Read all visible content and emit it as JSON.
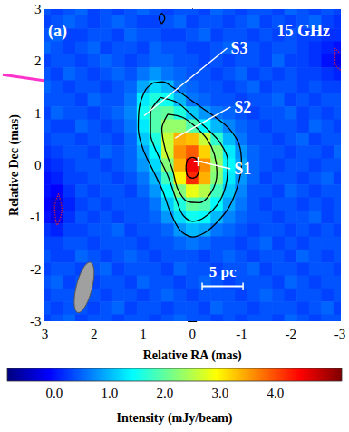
{
  "chart_data": {
    "type": "heatmap",
    "title": "15 GHz",
    "panel_label": "(a)",
    "x_label": "Relative RA (mas)",
    "y_label": "Relative Dec (mas)",
    "xlim": [
      3,
      -3
    ],
    "ylim": [
      -3,
      3
    ],
    "xticks": [
      3,
      2,
      1,
      0,
      -1,
      -2,
      -3
    ],
    "yticks": [
      -3,
      -2,
      -1,
      0,
      1,
      2,
      3
    ],
    "x": [
      3,
      2.75,
      2.5,
      2.25,
      2,
      1.75,
      1.5,
      1.25,
      1,
      0.75,
      0.5,
      0.25,
      0,
      -0.25,
      -0.5,
      -0.75,
      -1,
      -1.25,
      -1.5,
      -1.75,
      -2,
      -2.25,
      -2.5,
      -2.75,
      -3
    ],
    "y": [
      3,
      2.75,
      2.5,
      2.25,
      2,
      1.75,
      1.5,
      1.25,
      1,
      0.75,
      0.5,
      0.25,
      0,
      -0.25,
      -0.5,
      -0.75,
      -1,
      -1.25,
      -1.5,
      -1.75,
      -2,
      -2.25,
      -2.5,
      -2.75,
      -3
    ],
    "z": [
      [
        0.4,
        0.3,
        0.4,
        0.5,
        0.3,
        0.4,
        0.3,
        0.4,
        0.5,
        0.4,
        0.3,
        0.4,
        0.4,
        0.3,
        0.5,
        0.4,
        0.3,
        0.4,
        0.4,
        0.3,
        0.5,
        0.4,
        0.3,
        0.4,
        0.3
      ],
      [
        0.3,
        0.4,
        0.5,
        0.4,
        0.3,
        0.4,
        0.5,
        0.4,
        0.3,
        0.3,
        0.4,
        0.5,
        0.3,
        0.4,
        0.4,
        0.3,
        0.4,
        0.5,
        0.3,
        0.4,
        0.3,
        0.4,
        0.5,
        0.3,
        0.2
      ],
      [
        0.4,
        0.5,
        0.3,
        0.3,
        0.4,
        0.4,
        0.3,
        0.5,
        0.4,
        0.4,
        0.3,
        0.3,
        0.4,
        0.5,
        0.3,
        0.4,
        0.4,
        0.3,
        0.4,
        0.3,
        0.4,
        0.3,
        0.3,
        0.2,
        0.2
      ],
      [
        0.5,
        0.4,
        0.3,
        0.4,
        0.5,
        0.3,
        0.4,
        0.4,
        0.3,
        0.5,
        0.4,
        0.4,
        0.3,
        0.3,
        0.4,
        0.5,
        0.3,
        0.4,
        0.3,
        0.4,
        0.4,
        0.3,
        0.2,
        0.1,
        0.0
      ],
      [
        0.3,
        0.4,
        0.4,
        0.3,
        0.4,
        0.5,
        0.4,
        0.3,
        0.4,
        0.5,
        0.5,
        0.4,
        0.4,
        0.3,
        0.4,
        0.3,
        0.4,
        0.4,
        0.3,
        0.5,
        0.3,
        0.3,
        0.2,
        0.0,
        -0.2
      ],
      [
        0.4,
        0.3,
        0.5,
        0.4,
        0.3,
        0.4,
        0.5,
        0.4,
        0.6,
        0.8,
        0.6,
        0.5,
        0.4,
        0.4,
        0.3,
        0.4,
        0.5,
        0.3,
        0.4,
        0.3,
        0.4,
        0.3,
        0.3,
        0.2,
        0.1
      ],
      [
        0.5,
        0.4,
        0.3,
        0.4,
        0.4,
        0.3,
        0.4,
        0.5,
        0.9,
        1.2,
        1.0,
        0.6,
        0.5,
        0.4,
        0.4,
        0.3,
        0.4,
        0.5,
        0.3,
        0.4,
        0.4,
        0.3,
        0.4,
        0.3,
        0.3
      ],
      [
        0.4,
        0.4,
        0.4,
        0.3,
        0.5,
        0.4,
        0.4,
        0.6,
        1.3,
        1.6,
        1.5,
        1.0,
        0.6,
        0.5,
        0.4,
        0.4,
        0.3,
        0.4,
        0.4,
        0.5,
        0.3,
        0.4,
        0.3,
        0.4,
        0.4
      ],
      [
        0.3,
        0.5,
        0.4,
        0.4,
        0.3,
        0.4,
        0.5,
        0.7,
        1.5,
        1.9,
        2.0,
        1.6,
        1.1,
        0.8,
        0.6,
        0.5,
        0.4,
        0.3,
        0.4,
        0.4,
        0.5,
        0.3,
        0.4,
        0.3,
        0.4
      ],
      [
        0.4,
        0.3,
        0.3,
        0.5,
        0.4,
        0.3,
        0.4,
        0.6,
        1.3,
        1.9,
        2.3,
        2.3,
        1.9,
        1.4,
        1.0,
        0.7,
        0.5,
        0.4,
        0.3,
        0.4,
        0.4,
        0.3,
        0.5,
        0.4,
        0.3
      ],
      [
        0.3,
        0.4,
        0.4,
        0.3,
        0.4,
        0.4,
        0.3,
        0.5,
        1.1,
        1.6,
        2.6,
        3.4,
        3.3,
        2.6,
        1.7,
        1.0,
        0.6,
        0.4,
        0.4,
        0.3,
        0.4,
        0.5,
        0.3,
        0.4,
        0.4
      ],
      [
        0.2,
        0.3,
        0.4,
        0.4,
        0.3,
        0.5,
        0.4,
        0.5,
        0.9,
        1.4,
        2.6,
        3.6,
        3.9,
        3.2,
        2.2,
        1.3,
        0.8,
        0.5,
        0.4,
        0.4,
        0.3,
        0.4,
        0.4,
        0.3,
        0.5
      ],
      [
        0.1,
        0.2,
        0.3,
        0.4,
        0.4,
        0.3,
        0.4,
        0.5,
        0.8,
        1.2,
        2.2,
        3.4,
        4.5,
        3.6,
        2.3,
        1.4,
        0.9,
        0.5,
        0.4,
        0.3,
        0.4,
        0.4,
        0.3,
        0.4,
        0.4
      ],
      [
        0.0,
        0.1,
        0.3,
        0.3,
        0.4,
        0.4,
        0.3,
        0.4,
        0.6,
        1.0,
        1.8,
        3.0,
        4.2,
        3.4,
        2.2,
        1.3,
        0.8,
        0.5,
        0.3,
        0.4,
        0.4,
        0.3,
        0.4,
        0.5,
        0.3
      ],
      [
        0.0,
        -0.1,
        0.2,
        0.4,
        0.3,
        0.4,
        0.4,
        0.3,
        0.5,
        0.8,
        1.4,
        2.2,
        2.8,
        2.5,
        1.8,
        1.1,
        0.7,
        0.4,
        0.4,
        0.3,
        0.5,
        0.4,
        0.3,
        0.4,
        0.4
      ],
      [
        -0.1,
        -0.3,
        0.1,
        0.3,
        0.4,
        0.3,
        0.4,
        0.4,
        0.4,
        0.6,
        1.1,
        1.6,
        2.0,
        1.9,
        1.4,
        0.9,
        0.6,
        0.4,
        0.3,
        0.4,
        0.4,
        0.3,
        0.4,
        0.3,
        0.4
      ],
      [
        0.0,
        -0.2,
        0.2,
        0.4,
        0.3,
        0.4,
        0.3,
        0.4,
        0.4,
        0.5,
        0.8,
        1.2,
        1.5,
        1.4,
        1.0,
        0.7,
        0.5,
        0.4,
        0.4,
        0.3,
        0.4,
        0.4,
        0.5,
        0.3,
        0.4
      ],
      [
        0.2,
        0.1,
        0.3,
        0.3,
        0.4,
        0.4,
        0.5,
        0.3,
        0.4,
        0.4,
        0.5,
        0.8,
        1.0,
        0.9,
        0.6,
        0.5,
        0.4,
        0.3,
        0.4,
        0.4,
        0.3,
        0.4,
        0.3,
        0.4,
        0.3
      ],
      [
        0.3,
        0.3,
        0.4,
        0.4,
        0.3,
        0.4,
        0.4,
        0.4,
        0.3,
        0.4,
        0.4,
        0.5,
        0.6,
        0.5,
        0.4,
        0.4,
        0.3,
        0.4,
        0.5,
        0.3,
        0.4,
        0.3,
        0.4,
        0.4,
        0.4
      ],
      [
        0.4,
        0.3,
        0.3,
        0.5,
        0.4,
        0.3,
        0.4,
        0.5,
        0.4,
        0.3,
        0.4,
        0.4,
        0.4,
        0.3,
        0.4,
        0.5,
        0.4,
        0.3,
        0.4,
        0.4,
        0.3,
        0.5,
        0.4,
        0.3,
        0.4
      ],
      [
        0.3,
        0.4,
        0.4,
        0.3,
        0.4,
        0.5,
        0.3,
        0.4,
        0.4,
        0.4,
        0.3,
        0.5,
        0.4,
        0.4,
        0.3,
        0.4,
        0.4,
        0.5,
        0.3,
        0.4,
        0.4,
        0.3,
        0.4,
        0.4,
        0.3
      ],
      [
        0.4,
        0.5,
        0.3,
        0.4,
        0.3,
        0.4,
        0.4,
        0.3,
        0.5,
        0.4,
        0.4,
        0.3,
        0.4,
        0.5,
        0.4,
        0.3,
        0.4,
        0.4,
        0.4,
        0.3,
        0.5,
        0.4,
        0.3,
        0.4,
        0.4
      ],
      [
        0.3,
        0.4,
        0.4,
        0.5,
        0.4,
        0.3,
        0.4,
        0.4,
        0.3,
        0.4,
        0.5,
        0.4,
        0.3,
        0.4,
        0.4,
        0.4,
        0.3,
        0.4,
        0.5,
        0.4,
        0.3,
        0.4,
        0.4,
        0.3,
        0.4
      ],
      [
        0.4,
        0.3,
        0.4,
        0.4,
        0.3,
        0.4,
        0.5,
        0.3,
        0.4,
        0.4,
        0.3,
        0.4,
        0.4,
        0.3,
        0.5,
        0.4,
        0.4,
        0.3,
        0.4,
        0.4,
        0.4,
        0.3,
        0.4,
        0.5,
        0.3
      ],
      [
        0.3,
        0.4,
        0.5,
        0.3,
        0.4,
        0.4,
        0.3,
        0.4,
        0.4,
        0.3,
        0.4,
        0.5,
        0.4,
        0.4,
        0.3,
        0.4,
        0.3,
        0.4,
        0.4,
        0.3,
        0.5,
        0.4,
        0.3,
        0.4,
        0.4
      ]
    ],
    "colorbar": {
      "label": "Intensity (mJy/beam)",
      "range": [
        -0.85,
        5.2
      ],
      "ticks": [
        {
          "value": 0,
          "label": "0.0"
        },
        {
          "value": 1,
          "label": "1.0"
        },
        {
          "value": 2,
          "label": "2.0"
        },
        {
          "value": 3,
          "label": "3.0"
        },
        {
          "value": 4,
          "label": "4.0"
        }
      ],
      "colors": [
        "#00007f",
        "#0000ff",
        "#007fff",
        "#00ffff",
        "#7fff7f",
        "#ffff00",
        "#ff7f00",
        "#ff0000",
        "#7f0000"
      ]
    },
    "contours": [
      {
        "color": "#000000",
        "line_style": "solid",
        "points": [
          [
            0.8,
            1.58
          ],
          [
            0.95,
            1.45
          ],
          [
            1.08,
            1.1
          ],
          [
            1.1,
            0.7
          ],
          [
            1.0,
            0.3
          ],
          [
            0.8,
            -0.1
          ],
          [
            0.6,
            -0.5
          ],
          [
            0.45,
            -0.9
          ],
          [
            0.25,
            -1.25
          ],
          [
            0.0,
            -1.38
          ],
          [
            -0.25,
            -1.3
          ],
          [
            -0.5,
            -1.1
          ],
          [
            -0.75,
            -0.8
          ],
          [
            -0.92,
            -0.4
          ],
          [
            -1.0,
            0.0
          ],
          [
            -0.95,
            0.4
          ],
          [
            -0.75,
            0.7
          ],
          [
            -0.5,
            0.9
          ],
          [
            -0.2,
            1.1
          ],
          [
            0.1,
            1.3
          ],
          [
            0.4,
            1.5
          ],
          [
            0.6,
            1.6
          ],
          [
            0.8,
            1.58
          ]
        ]
      },
      {
        "color": "#000000",
        "line_style": "solid",
        "points": [
          [
            0.65,
            1.3
          ],
          [
            0.85,
            1.0
          ],
          [
            0.85,
            0.6
          ],
          [
            0.7,
            0.2
          ],
          [
            0.5,
            -0.2
          ],
          [
            0.35,
            -0.6
          ],
          [
            0.2,
            -0.95
          ],
          [
            0.0,
            -1.08
          ],
          [
            -0.25,
            -1.0
          ],
          [
            -0.55,
            -0.7
          ],
          [
            -0.7,
            -0.3
          ],
          [
            -0.72,
            0.1
          ],
          [
            -0.55,
            0.45
          ],
          [
            -0.3,
            0.7
          ],
          [
            0.0,
            0.95
          ],
          [
            0.3,
            1.2
          ],
          [
            0.65,
            1.3
          ]
        ]
      },
      {
        "color": "#000000",
        "line_style": "solid",
        "points": [
          [
            0.5,
            0.98
          ],
          [
            0.62,
            0.7
          ],
          [
            0.55,
            0.3
          ],
          [
            0.4,
            -0.1
          ],
          [
            0.3,
            -0.45
          ],
          [
            0.1,
            -0.7
          ],
          [
            -0.15,
            -0.72
          ],
          [
            -0.4,
            -0.5
          ],
          [
            -0.5,
            -0.15
          ],
          [
            -0.45,
            0.2
          ],
          [
            -0.3,
            0.5
          ],
          [
            -0.05,
            0.75
          ],
          [
            0.2,
            0.92
          ],
          [
            0.5,
            0.98
          ]
        ]
      },
      {
        "color": "#000000",
        "line_style": "solid",
        "points": [
          [
            0.13,
            -0.05
          ],
          [
            0.1,
            0.1
          ],
          [
            0.0,
            0.15
          ],
          [
            -0.1,
            0.1
          ],
          [
            -0.14,
            -0.05
          ],
          [
            -0.1,
            -0.2
          ],
          [
            0.0,
            -0.25
          ],
          [
            0.1,
            -0.2
          ],
          [
            0.13,
            -0.05
          ]
        ]
      },
      {
        "color": "#000000",
        "line_style": "solid",
        "points": [
          [
            0.62,
            2.72
          ],
          [
            0.68,
            2.82
          ],
          [
            0.62,
            2.92
          ],
          [
            0.56,
            2.82
          ],
          [
            0.62,
            2.72
          ]
        ]
      },
      {
        "color": "#cc2244",
        "line_style": "dotted",
        "points": [
          [
            2.72,
            -0.55
          ],
          [
            2.8,
            -0.8
          ],
          [
            2.75,
            -1.15
          ],
          [
            2.65,
            -0.85
          ],
          [
            2.72,
            -0.55
          ]
        ]
      },
      {
        "color": "#cc2244",
        "line_style": "dotted",
        "points": [
          [
            -2.9,
            2.25
          ],
          [
            -3.05,
            2.05
          ],
          [
            -3.05,
            1.8
          ],
          [
            -2.9,
            1.95
          ],
          [
            -2.9,
            2.25
          ]
        ]
      }
    ],
    "cross": [
      -0.12,
      0.07
    ],
    "annotations": [
      {
        "text": "S3",
        "x": -0.78,
        "y": 2.25,
        "point": [
          0.98,
          0.95
        ]
      },
      {
        "text": "S2",
        "x": -0.85,
        "y": 1.12,
        "point": [
          0.35,
          0.52
        ]
      },
      {
        "text": "S1",
        "x": -0.85,
        "y": -0.07,
        "point": [
          -0.15,
          0.07
        ]
      }
    ],
    "scale_bar": {
      "label": "5 pc",
      "from": -0.2,
      "to": -1.03,
      "y": -2.33
    },
    "beam": {
      "x": 2.2,
      "y": -2.35,
      "major": 1.0,
      "minor": 0.32,
      "pa": -15
    }
  }
}
